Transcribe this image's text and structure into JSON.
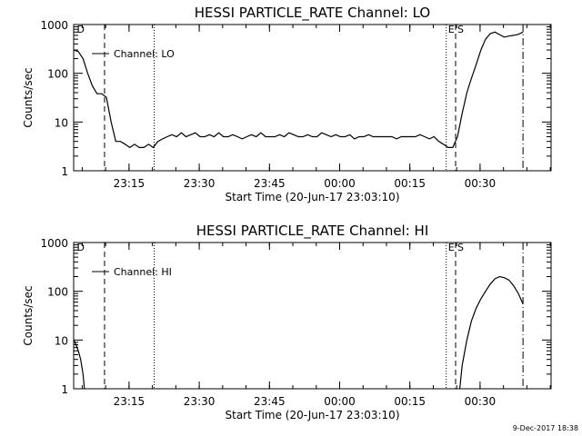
{
  "chart_data": [
    {
      "type": "line",
      "title": "HESSI PARTICLE_RATE Channel: LO",
      "xlabel": "Start Time (20-Jun-17 23:03:10)",
      "ylabel": "Counts/sec",
      "yscale": "log",
      "ylim": [
        1,
        1000
      ],
      "xlim_minutes_after_start": [
        0,
        102
      ],
      "y_ticks": [
        "1",
        "10",
        "100",
        "1000"
      ],
      "x_ticks": [
        {
          "label": "23:15",
          "t": 11.83
        },
        {
          "label": "23:30",
          "t": 26.83
        },
        {
          "label": "23:45",
          "t": 41.83
        },
        {
          "label": "00:00",
          "t": 56.83
        },
        {
          "label": "00:15",
          "t": 71.83
        },
        {
          "label": "00:30",
          "t": 86.83
        }
      ],
      "legend": "Channel: LO",
      "legend_position": "top-left",
      "markers": [
        {
          "label": "D",
          "t": 0.3,
          "style": "none"
        },
        {
          "label": "",
          "t": 6.6,
          "style": "dashed"
        },
        {
          "label": "",
          "t": 17.2,
          "style": "dotted"
        },
        {
          "label": "E",
          "t": 79.6,
          "style": "dotted"
        },
        {
          "label": "S",
          "t": 81.6,
          "style": "dashed"
        },
        {
          "label": "",
          "t": 96.0,
          "style": "dashdot"
        }
      ],
      "series": [
        {
          "x": [
            0,
            1,
            2,
            3,
            4,
            5,
            6,
            7,
            8,
            9,
            10,
            11,
            12,
            13,
            14,
            15,
            16,
            17,
            18,
            19,
            20,
            21,
            22,
            23,
            24,
            25,
            26,
            27,
            28,
            29,
            30,
            31,
            32,
            33,
            34,
            35,
            36,
            37,
            38,
            39,
            40,
            41,
            42,
            43,
            44,
            45,
            46,
            47,
            48,
            49,
            50,
            51,
            52,
            53,
            54,
            55,
            56,
            57,
            58,
            59,
            60,
            61,
            62,
            63,
            64,
            65,
            66,
            67,
            68,
            69,
            70,
            71,
            72,
            73,
            74,
            75,
            76,
            77,
            78,
            79,
            80,
            81,
            82,
            83,
            84,
            85,
            86,
            87,
            88,
            89,
            90,
            91,
            92,
            93,
            94,
            95,
            96
          ],
          "y": [
            300,
            280,
            200,
            100,
            55,
            38,
            38,
            32,
            10,
            4,
            4,
            3.5,
            3,
            3.5,
            3,
            3,
            3.5,
            3,
            4,
            4.5,
            5,
            5.5,
            5,
            6,
            5,
            5.5,
            6,
            5,
            5,
            5.5,
            5,
            6,
            5,
            5,
            5.5,
            5,
            4.5,
            5,
            5.5,
            5,
            6,
            5,
            5,
            5,
            5.5,
            5,
            6,
            5.5,
            5,
            5,
            5.5,
            5,
            5,
            6,
            5.5,
            5,
            5.5,
            5,
            5,
            5.5,
            4.5,
            5,
            5,
            5.5,
            5,
            5,
            5,
            5,
            5,
            4.5,
            5,
            5,
            5,
            5,
            5.5,
            5,
            4.5,
            5,
            4,
            3.5,
            3,
            3,
            5,
            15,
            40,
            80,
            150,
            300,
            500,
            650,
            700,
            620,
            550,
            580,
            600,
            630,
            700
          ]
        }
      ]
    },
    {
      "type": "line",
      "title": "HESSI PARTICLE_RATE Channel: HI",
      "xlabel": "Start Time (20-Jun-17 23:03:10)",
      "ylabel": "Counts/sec",
      "yscale": "log",
      "ylim": [
        1,
        1000
      ],
      "xlim_minutes_after_start": [
        0,
        102
      ],
      "y_ticks": [
        "1",
        "10",
        "100",
        "1000"
      ],
      "x_ticks": [
        {
          "label": "23:15",
          "t": 11.83
        },
        {
          "label": "23:30",
          "t": 26.83
        },
        {
          "label": "23:45",
          "t": 41.83
        },
        {
          "label": "00:00",
          "t": 56.83
        },
        {
          "label": "00:15",
          "t": 71.83
        },
        {
          "label": "00:30",
          "t": 86.83
        }
      ],
      "legend": "Channel: HI",
      "legend_position": "top-left",
      "markers": [
        {
          "label": "D",
          "t": 0.3,
          "style": "none"
        },
        {
          "label": "",
          "t": 6.6,
          "style": "dashed"
        },
        {
          "label": "",
          "t": 17.2,
          "style": "dotted"
        },
        {
          "label": "E",
          "t": 79.6,
          "style": "dotted"
        },
        {
          "label": "S",
          "t": 81.6,
          "style": "dashed"
        },
        {
          "label": "",
          "t": 96.0,
          "style": "dashdot"
        }
      ],
      "series": [
        {
          "x": [
            0,
            0.5,
            1.0,
            1.5,
            2.0,
            2.3,
            82.5,
            83,
            84,
            85,
            86,
            87,
            88,
            89,
            90,
            91,
            92,
            93,
            94,
            95,
            96
          ],
          "y": [
            10,
            8,
            6,
            4,
            2,
            1,
            1,
            3,
            10,
            25,
            45,
            70,
            100,
            140,
            180,
            200,
            190,
            170,
            130,
            90,
            55
          ]
        }
      ]
    }
  ],
  "footer": {
    "timestamp": "9-Dec-2017 18:38"
  }
}
